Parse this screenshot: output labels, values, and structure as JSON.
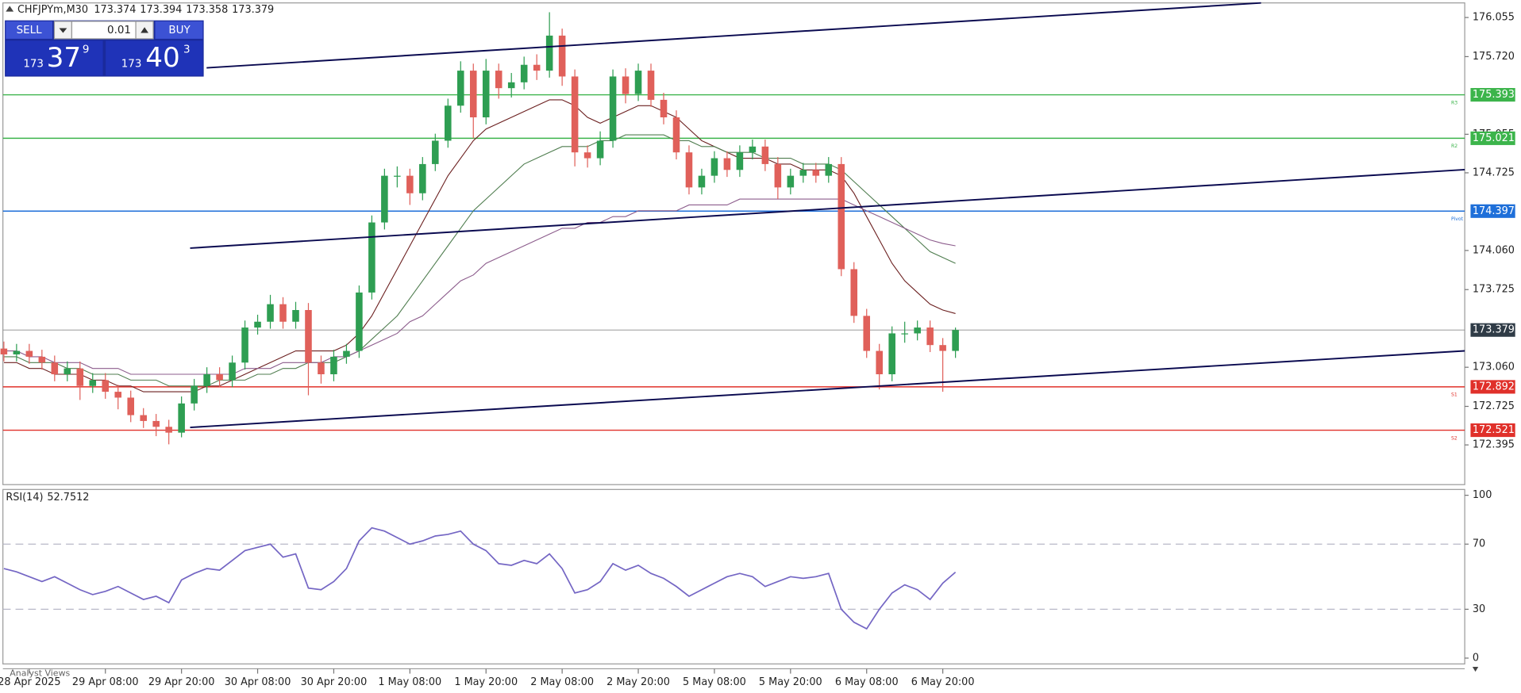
{
  "header": {
    "symbol": "CHFJPYm,M30",
    "ohlc": [
      173.374,
      173.394,
      173.358,
      173.379
    ]
  },
  "trade_panel": {
    "sell": "SELL",
    "lot": "0.01",
    "buy": "BUY",
    "bid": {
      "big": "173",
      "main": "37",
      "frac": "9"
    },
    "ask": {
      "big": "173",
      "main": "40",
      "frac": "3"
    }
  },
  "bottom_tab": "Analyst Views",
  "chart_data": [
    {
      "type": "candlestick",
      "x": [
        "28 Apr 16:00",
        "28 Apr 18:00",
        "28 Apr 20:00",
        "28 Apr 22:00",
        "29 Apr 00:00",
        "29 Apr 02:00",
        "29 Apr 04:00",
        "29 Apr 06:00",
        "29 Apr 08:00",
        "29 Apr 10:00",
        "29 Apr 12:00",
        "29 Apr 14:00",
        "29 Apr 16:00",
        "29 Apr 18:00",
        "29 Apr 20:00",
        "29 Apr 22:00",
        "30 Apr 00:00",
        "30 Apr 02:00",
        "30 Apr 04:00",
        "30 Apr 06:00",
        "30 Apr 08:00",
        "30 Apr 10:00",
        "30 Apr 12:00",
        "30 Apr 14:00",
        "30 Apr 16:00",
        "30 Apr 18:00",
        "30 Apr 20:00",
        "30 Apr 22:00",
        "1 May 00:00",
        "1 May 02:00",
        "1 May 04:00",
        "1 May 06:00",
        "1 May 08:00",
        "1 May 10:00",
        "1 May 12:00",
        "1 May 14:00",
        "1 May 16:00",
        "1 May 18:00",
        "1 May 20:00",
        "1 May 22:00",
        "2 May 00:00",
        "2 May 02:00",
        "2 May 04:00",
        "2 May 06:00",
        "2 May 08:00",
        "2 May 10:00",
        "2 May 12:00",
        "2 May 14:00",
        "2 May 16:00",
        "2 May 18:00",
        "2 May 20:00",
        "2 May 22:00",
        "5 May 00:00",
        "5 May 02:00",
        "5 May 04:00",
        "5 May 06:00",
        "5 May 08:00",
        "5 May 10:00",
        "5 May 12:00",
        "5 May 14:00",
        "5 May 16:00",
        "5 May 18:00",
        "5 May 20:00",
        "5 May 22:00",
        "6 May 00:00",
        "6 May 02:00",
        "6 May 04:00",
        "6 May 06:00",
        "6 May 08:00",
        "6 May 10:00",
        "6 May 12:00",
        "6 May 14:00",
        "6 May 16:00",
        "6 May 18:00",
        "6 May 20:00",
        "6 May 22:00"
      ],
      "open": [
        173.22,
        173.17,
        173.2,
        173.15,
        173.1,
        173.0,
        173.05,
        172.9,
        172.95,
        172.85,
        172.8,
        172.65,
        172.6,
        172.55,
        172.5,
        172.75,
        172.9,
        173.0,
        172.95,
        173.1,
        173.4,
        173.45,
        173.6,
        173.45,
        173.55,
        173.1,
        173.0,
        173.15,
        173.2,
        173.7,
        174.3,
        174.7,
        174.7,
        174.55,
        174.8,
        175.0,
        175.3,
        175.6,
        175.2,
        175.6,
        175.45,
        175.5,
        175.65,
        175.6,
        175.9,
        175.55,
        174.9,
        174.85,
        175.0,
        175.55,
        175.4,
        175.6,
        175.35,
        175.2,
        174.9,
        174.6,
        174.7,
        174.85,
        174.75,
        174.9,
        174.95,
        174.8,
        174.6,
        174.7,
        174.75,
        174.7,
        174.8,
        173.9,
        173.5,
        173.2,
        173.0,
        173.35,
        173.35,
        173.4,
        173.25,
        173.2
      ],
      "high": [
        173.28,
        173.26,
        173.26,
        173.21,
        173.16,
        173.11,
        173.11,
        173.01,
        173.01,
        172.91,
        172.86,
        172.71,
        172.66,
        172.61,
        172.81,
        172.96,
        173.06,
        173.06,
        173.16,
        173.46,
        173.51,
        173.68,
        173.66,
        173.62,
        173.61,
        173.16,
        173.21,
        173.26,
        173.76,
        174.36,
        174.76,
        174.78,
        174.76,
        174.86,
        175.06,
        175.36,
        175.68,
        175.66,
        175.7,
        175.66,
        175.58,
        175.72,
        175.74,
        176.1,
        175.96,
        175.61,
        174.96,
        175.08,
        175.61,
        175.62,
        175.66,
        175.66,
        175.41,
        175.26,
        174.96,
        174.76,
        174.91,
        174.91,
        174.96,
        175.01,
        175.01,
        174.86,
        174.76,
        174.81,
        174.81,
        174.86,
        174.86,
        173.96,
        173.56,
        173.26,
        173.41,
        173.45,
        173.46,
        173.46,
        173.31,
        173.4
      ],
      "low": [
        173.11,
        173.11,
        173.09,
        173.04,
        172.94,
        172.94,
        172.78,
        172.84,
        172.79,
        172.7,
        172.59,
        172.54,
        172.47,
        172.4,
        172.46,
        172.69,
        172.84,
        172.89,
        172.89,
        173.04,
        173.34,
        173.39,
        173.39,
        173.39,
        172.82,
        172.92,
        172.94,
        173.09,
        173.14,
        173.64,
        174.24,
        174.6,
        174.45,
        174.49,
        174.74,
        174.94,
        175.24,
        175.02,
        175.14,
        175.36,
        175.37,
        175.44,
        175.52,
        175.54,
        175.47,
        174.78,
        174.77,
        174.79,
        174.94,
        175.32,
        175.34,
        175.29,
        175.14,
        174.84,
        174.54,
        174.54,
        174.64,
        174.69,
        174.69,
        174.84,
        174.74,
        174.5,
        174.54,
        174.64,
        174.64,
        174.64,
        173.84,
        173.44,
        173.14,
        172.87,
        172.94,
        173.27,
        173.29,
        173.19,
        172.85,
        173.14
      ],
      "close": [
        173.17,
        173.2,
        173.15,
        173.1,
        173.0,
        173.05,
        172.9,
        172.95,
        172.85,
        172.8,
        172.65,
        172.6,
        172.55,
        172.5,
        172.75,
        172.9,
        173.0,
        172.95,
        173.1,
        173.4,
        173.45,
        173.6,
        173.45,
        173.55,
        173.1,
        173.0,
        173.15,
        173.2,
        173.7,
        174.3,
        174.7,
        174.7,
        174.55,
        174.8,
        175.0,
        175.3,
        175.6,
        175.2,
        175.6,
        175.45,
        175.5,
        175.65,
        175.6,
        175.9,
        175.55,
        174.9,
        174.85,
        175.0,
        175.55,
        175.4,
        175.6,
        175.35,
        175.2,
        174.9,
        174.6,
        174.7,
        174.85,
        174.75,
        174.9,
        174.95,
        174.8,
        174.6,
        174.7,
        174.75,
        174.7,
        174.8,
        173.9,
        173.5,
        173.2,
        173.0,
        173.35,
        173.35,
        173.4,
        173.25,
        173.2,
        173.379
      ],
      "up_color": "#2e9e52",
      "down_color": "#e0605a",
      "ma": [
        {
          "color": "#6b1f1f",
          "values": [
            173.1,
            173.1,
            173.05,
            173.05,
            173.0,
            173.0,
            173.0,
            172.95,
            172.95,
            172.9,
            172.9,
            172.85,
            172.85,
            172.85,
            172.85,
            172.85,
            172.9,
            172.9,
            172.95,
            173.0,
            173.05,
            173.1,
            173.15,
            173.2,
            173.2,
            173.2,
            173.2,
            173.25,
            173.35,
            173.5,
            173.7,
            173.9,
            174.1,
            174.3,
            174.5,
            174.7,
            174.85,
            175.0,
            175.1,
            175.15,
            175.2,
            175.25,
            175.3,
            175.35,
            175.35,
            175.3,
            175.2,
            175.15,
            175.2,
            175.25,
            175.3,
            175.3,
            175.25,
            175.2,
            175.1,
            175.0,
            174.95,
            174.9,
            174.85,
            174.85,
            174.85,
            174.8,
            174.8,
            174.75,
            174.75,
            174.75,
            174.7,
            174.55,
            174.35,
            174.15,
            173.95,
            173.8,
            173.7,
            173.6,
            173.55,
            173.52
          ]
        },
        {
          "color": "#4f7d4f",
          "values": [
            173.15,
            173.15,
            173.1,
            173.1,
            173.1,
            173.05,
            173.05,
            173.0,
            173.0,
            173.0,
            172.95,
            172.95,
            172.95,
            172.9,
            172.9,
            172.9,
            172.9,
            172.95,
            172.95,
            172.95,
            173.0,
            173.0,
            173.05,
            173.05,
            173.1,
            173.1,
            173.1,
            173.15,
            173.2,
            173.3,
            173.4,
            173.5,
            173.65,
            173.8,
            173.95,
            174.1,
            174.25,
            174.4,
            174.5,
            174.6,
            174.7,
            174.8,
            174.85,
            174.9,
            174.95,
            174.95,
            174.95,
            175.0,
            175.0,
            175.05,
            175.05,
            175.05,
            175.05,
            175.0,
            175.0,
            174.95,
            174.95,
            174.9,
            174.9,
            174.9,
            174.85,
            174.85,
            174.85,
            174.8,
            174.8,
            174.8,
            174.75,
            174.65,
            174.55,
            174.45,
            174.35,
            174.25,
            174.15,
            174.05,
            174.0,
            173.95
          ]
        },
        {
          "color": "#8c5c8c",
          "values": [
            173.2,
            173.2,
            173.15,
            173.15,
            173.1,
            173.1,
            173.1,
            173.05,
            173.05,
            173.05,
            173.0,
            173.0,
            173.0,
            173.0,
            173.0,
            173.0,
            173.0,
            173.0,
            173.0,
            173.05,
            173.05,
            173.05,
            173.1,
            173.1,
            173.1,
            173.1,
            173.15,
            173.15,
            173.2,
            173.25,
            173.3,
            173.35,
            173.45,
            173.5,
            173.6,
            173.7,
            173.8,
            173.85,
            173.95,
            174.0,
            174.05,
            174.1,
            174.15,
            174.2,
            174.25,
            174.25,
            174.3,
            174.3,
            174.35,
            174.35,
            174.4,
            174.4,
            174.4,
            174.4,
            174.45,
            174.45,
            174.45,
            174.45,
            174.5,
            174.5,
            174.5,
            174.5,
            174.5,
            174.5,
            174.5,
            174.5,
            174.5,
            174.45,
            174.4,
            174.35,
            174.3,
            174.25,
            174.2,
            174.15,
            174.12,
            174.1
          ]
        }
      ],
      "levels": [
        {
          "label": "R3",
          "value": 175.393,
          "color": "#3cb44b"
        },
        {
          "label": "R2",
          "value": 175.021,
          "color": "#3cb44b"
        },
        {
          "label": "Pivot",
          "value": 174.397,
          "color": "#1e6fd9"
        },
        {
          "label": "S1",
          "value": 172.892,
          "color": "#e0302a"
        },
        {
          "label": "S2",
          "value": 172.521,
          "color": "#e0302a"
        }
      ],
      "current_price": 173.379,
      "current_color": "#2f3b46",
      "ylim": [
        172.055,
        176.18
      ],
      "yticks": [
        176.055,
        {
          "value": 175.72,
          "label": "175.720"
        },
        175.055,
        174.725,
        {
          "value": 174.06,
          "label": "174.060"
        },
        173.725,
        {
          "value": 173.06,
          "label": "173.060"
        },
        172.725,
        172.395
      ],
      "xticks": [
        {
          "value": "28 Apr 20:00",
          "label": "28 Apr 2025"
        },
        "29 Apr 08:00",
        "29 Apr 20:00",
        "30 Apr 08:00",
        "30 Apr 20:00",
        "1 May 08:00",
        "1 May 20:00",
        "2 May 08:00",
        "2 May 20:00",
        "5 May 08:00",
        "5 May 20:00",
        "6 May 08:00",
        "6 May 20:00"
      ]
    },
    {
      "type": "line",
      "name": "RSI(14)",
      "color": "#7466c4",
      "values": [
        55,
        53,
        50,
        47,
        50,
        46,
        42,
        39,
        41,
        44,
        40,
        36,
        38,
        34,
        48,
        52,
        55,
        54,
        60,
        66,
        68,
        70,
        62,
        64,
        43,
        42,
        47,
        55,
        72,
        80,
        78,
        74,
        70,
        72,
        75,
        76,
        78,
        70,
        66,
        58,
        57,
        60,
        58,
        64,
        55,
        40,
        42,
        47,
        58,
        54,
        57,
        52,
        49,
        44,
        38,
        42,
        46,
        50,
        52,
        50,
        44,
        47,
        50,
        49,
        50,
        52,
        30,
        22,
        18,
        30,
        40,
        45,
        42,
        36,
        46,
        52.7512
      ],
      "ylim": [
        0,
        100
      ],
      "yticks": [
        0,
        30,
        70,
        100
      ],
      "levels": [
        30,
        70
      ]
    }
  ]
}
